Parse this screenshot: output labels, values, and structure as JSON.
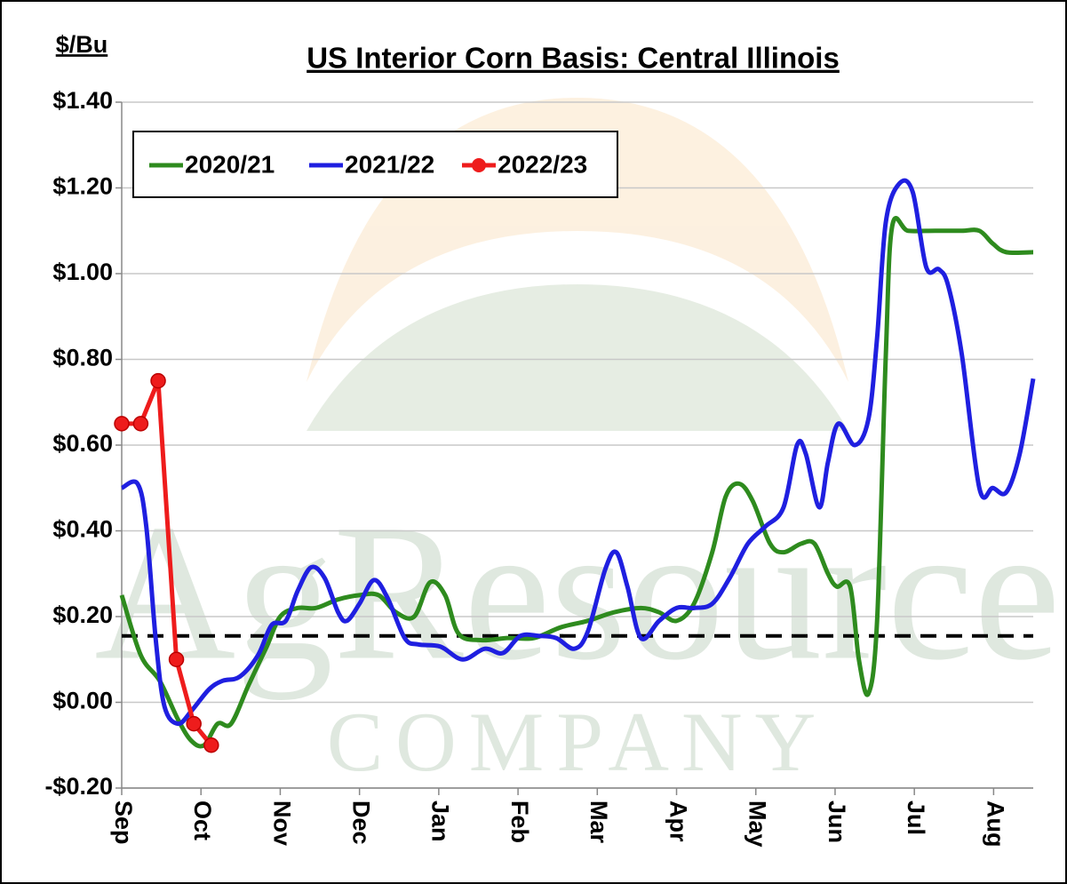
{
  "chart_data": {
    "type": "line",
    "title": "US Interior Corn Basis: Central Illinois",
    "y_label": "$/Bu",
    "watermark": [
      "AgResource",
      "COMPANY"
    ],
    "xlim": [
      0,
      11.5
    ],
    "xticks": [
      {
        "value": 0,
        "label": "Sep"
      },
      {
        "value": 1,
        "label": "Oct"
      },
      {
        "value": 2,
        "label": "Nov"
      },
      {
        "value": 3,
        "label": "Dec"
      },
      {
        "value": 4,
        "label": "Jan"
      },
      {
        "value": 5,
        "label": "Feb"
      },
      {
        "value": 6,
        "label": "Mar"
      },
      {
        "value": 7,
        "label": "Apr"
      },
      {
        "value": 8,
        "label": "May"
      },
      {
        "value": 9,
        "label": "Jun"
      },
      {
        "value": 10,
        "label": "Jul"
      },
      {
        "value": 11,
        "label": "Aug"
      }
    ],
    "ylim": [
      -0.2,
      1.4
    ],
    "yticks": [
      {
        "value": -0.2,
        "label": "-$0.20"
      },
      {
        "value": 0,
        "label": "$0.00"
      },
      {
        "value": 0.2,
        "label": "$0.20"
      },
      {
        "value": 0.4,
        "label": "$0.40"
      },
      {
        "value": 0.6,
        "label": "$0.60"
      },
      {
        "value": 0.8,
        "label": "$0.80"
      },
      {
        "value": 1.0,
        "label": "$1.00"
      },
      {
        "value": 1.2,
        "label": "$1.20"
      },
      {
        "value": 1.4,
        "label": "$1.40"
      }
    ],
    "grid": true,
    "reference_line": 0.155,
    "legend": "upper left",
    "series": [
      {
        "name": "2020/21",
        "color": "#2e8b1e",
        "markers": false,
        "x": [
          0,
          0.24,
          0.48,
          0.71,
          0.88,
          1.04,
          1.21,
          1.38,
          1.6,
          1.83,
          2.0,
          2.22,
          2.45,
          2.73,
          3.0,
          3.24,
          3.46,
          3.69,
          3.89,
          4.08,
          4.25,
          4.53,
          4.87,
          5.2,
          5.54,
          5.88,
          6.21,
          6.55,
          6.78,
          7.0,
          7.22,
          7.45,
          7.62,
          7.79,
          7.96,
          8.18,
          8.35,
          8.57,
          8.74,
          8.91,
          9.02,
          9.19,
          9.3,
          9.42,
          9.53,
          9.64,
          9.72,
          9.92,
          10.26,
          10.6,
          10.82,
          10.99,
          11.16,
          11.5
        ],
        "values": [
          0.25,
          0.11,
          0.05,
          -0.04,
          -0.09,
          -0.1,
          -0.05,
          -0.05,
          0.04,
          0.13,
          0.2,
          0.22,
          0.22,
          0.24,
          0.25,
          0.25,
          0.21,
          0.2,
          0.28,
          0.25,
          0.16,
          0.145,
          0.15,
          0.15,
          0.175,
          0.19,
          0.21,
          0.22,
          0.21,
          0.19,
          0.23,
          0.35,
          0.48,
          0.51,
          0.47,
          0.37,
          0.35,
          0.37,
          0.37,
          0.3,
          0.27,
          0.27,
          0.1,
          0.02,
          0.19,
          0.81,
          1.11,
          1.1,
          1.1,
          1.1,
          1.1,
          1.07,
          1.05,
          1.05
        ]
      },
      {
        "name": "2021/22",
        "color": "#1f1fe0",
        "markers": false,
        "x": [
          0,
          0.2,
          0.31,
          0.43,
          0.54,
          0.71,
          0.88,
          1.1,
          1.27,
          1.49,
          1.72,
          1.89,
          2.07,
          2.22,
          2.39,
          2.56,
          2.73,
          2.84,
          3.0,
          3.18,
          3.35,
          3.57,
          3.74,
          4.02,
          4.3,
          4.58,
          4.81,
          5.03,
          5.26,
          5.48,
          5.71,
          5.88,
          6.1,
          6.24,
          6.38,
          6.55,
          6.78,
          7.0,
          7.22,
          7.45,
          7.67,
          7.9,
          8.12,
          8.35,
          8.52,
          8.63,
          8.8,
          8.91,
          9.04,
          9.25,
          9.42,
          9.53,
          9.64,
          9.81,
          9.98,
          10.15,
          10.31,
          10.43,
          10.6,
          10.82,
          10.99,
          11.16,
          11.33,
          11.5
        ],
        "values": [
          0.5,
          0.51,
          0.41,
          0.145,
          -0.01,
          -0.05,
          -0.02,
          0.03,
          0.05,
          0.06,
          0.11,
          0.18,
          0.19,
          0.26,
          0.315,
          0.29,
          0.21,
          0.19,
          0.23,
          0.285,
          0.245,
          0.15,
          0.135,
          0.13,
          0.1,
          0.125,
          0.115,
          0.155,
          0.155,
          0.15,
          0.125,
          0.165,
          0.31,
          0.35,
          0.27,
          0.15,
          0.19,
          0.22,
          0.22,
          0.23,
          0.29,
          0.37,
          0.41,
          0.455,
          0.6,
          0.58,
          0.455,
          0.56,
          0.65,
          0.6,
          0.66,
          0.85,
          1.12,
          1.21,
          1.19,
          1.015,
          1.01,
          0.97,
          0.81,
          0.5,
          0.5,
          0.49,
          0.58,
          0.755
        ]
      },
      {
        "name": "2022/23",
        "color": "#ee1c1c",
        "markers": true,
        "x": [
          0,
          0.24,
          0.46,
          0.69,
          0.91,
          1.13
        ],
        "values": [
          0.65,
          0.65,
          0.75,
          0.1,
          -0.05,
          -0.1
        ]
      }
    ]
  }
}
